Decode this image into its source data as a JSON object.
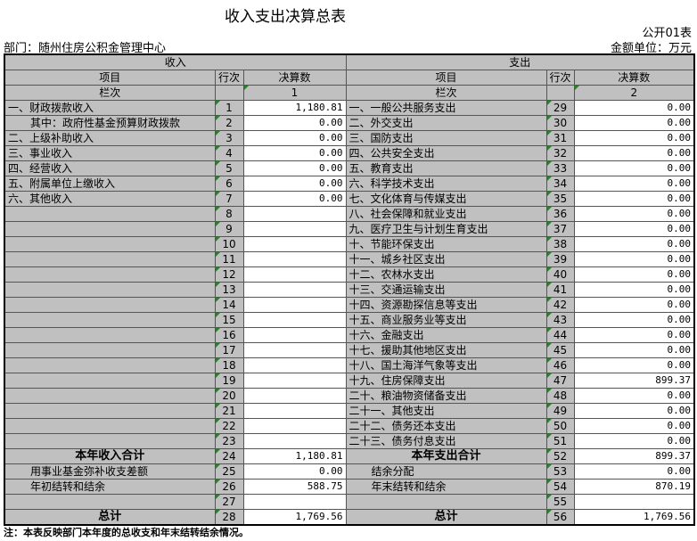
{
  "title": "收入支出决算总表",
  "form_no": "公开01表",
  "department": "部门：随州住房公积金管理中心",
  "unit": "金额单位：万元",
  "headers": {
    "income": "收入",
    "expense": "支出",
    "item": "项目",
    "line_no": "行次",
    "amount": "决算数",
    "column_no": "栏次",
    "income_col": "1",
    "expense_col": "2"
  },
  "rows": [
    {
      "in_label": "一、财政拨款收入",
      "in_no": "1",
      "in_amt": "1,180.81",
      "ex_label": "一、一般公共服务支出",
      "ex_no": "29",
      "ex_amt": "0.00"
    },
    {
      "in_label": "其中：政府性基金预算财政拨款",
      "in_no": "2",
      "in_amt": "0.00",
      "ex_label": "二、外交支出",
      "ex_no": "30",
      "ex_amt": "0.00"
    },
    {
      "in_label": "二、上级补助收入",
      "in_no": "3",
      "in_amt": "0.00",
      "ex_label": "三、国防支出",
      "ex_no": "31",
      "ex_amt": "0.00"
    },
    {
      "in_label": "三、事业收入",
      "in_no": "4",
      "in_amt": "0.00",
      "ex_label": "四、公共安全支出",
      "ex_no": "32",
      "ex_amt": "0.00"
    },
    {
      "in_label": "四、经营收入",
      "in_no": "5",
      "in_amt": "0.00",
      "ex_label": "五、教育支出",
      "ex_no": "33",
      "ex_amt": "0.00"
    },
    {
      "in_label": "五、附属单位上缴收入",
      "in_no": "6",
      "in_amt": "0.00",
      "ex_label": "六、科学技术支出",
      "ex_no": "34",
      "ex_amt": "0.00"
    },
    {
      "in_label": "六、其他收入",
      "in_no": "7",
      "in_amt": "0.00",
      "ex_label": "七、文化体育与传媒支出",
      "ex_no": "35",
      "ex_amt": "0.00"
    },
    {
      "in_label": "",
      "in_no": "8",
      "in_amt": "",
      "ex_label": "八、社会保障和就业支出",
      "ex_no": "36",
      "ex_amt": "0.00"
    },
    {
      "in_label": "",
      "in_no": "9",
      "in_amt": "",
      "ex_label": "九、医疗卫生与计划生育支出",
      "ex_no": "37",
      "ex_amt": "0.00"
    },
    {
      "in_label": "",
      "in_no": "10",
      "in_amt": "",
      "ex_label": "十、节能环保支出",
      "ex_no": "38",
      "ex_amt": "0.00"
    },
    {
      "in_label": "",
      "in_no": "11",
      "in_amt": "",
      "ex_label": "十一、城乡社区支出",
      "ex_no": "39",
      "ex_amt": "0.00"
    },
    {
      "in_label": "",
      "in_no": "12",
      "in_amt": "",
      "ex_label": "十二、农林水支出",
      "ex_no": "40",
      "ex_amt": "0.00"
    },
    {
      "in_label": "",
      "in_no": "13",
      "in_amt": "",
      "ex_label": "十三、交通运输支出",
      "ex_no": "41",
      "ex_amt": "0.00"
    },
    {
      "in_label": "",
      "in_no": "14",
      "in_amt": "",
      "ex_label": "十四、资源勘探信息等支出",
      "ex_no": "42",
      "ex_amt": "0.00"
    },
    {
      "in_label": "",
      "in_no": "15",
      "in_amt": "",
      "ex_label": "十五、商业服务业等支出",
      "ex_no": "43",
      "ex_amt": "0.00"
    },
    {
      "in_label": "",
      "in_no": "16",
      "in_amt": "",
      "ex_label": "十六、金融支出",
      "ex_no": "44",
      "ex_amt": "0.00"
    },
    {
      "in_label": "",
      "in_no": "17",
      "in_amt": "",
      "ex_label": "十七、援助其他地区支出",
      "ex_no": "45",
      "ex_amt": "0.00"
    },
    {
      "in_label": "",
      "in_no": "18",
      "in_amt": "",
      "ex_label": "十八、国土海洋气象等支出",
      "ex_no": "46",
      "ex_amt": "0.00"
    },
    {
      "in_label": "",
      "in_no": "19",
      "in_amt": "",
      "ex_label": "十九、住房保障支出",
      "ex_no": "47",
      "ex_amt": "899.37"
    },
    {
      "in_label": "",
      "in_no": "20",
      "in_amt": "",
      "ex_label": "二十、粮油物资储备支出",
      "ex_no": "48",
      "ex_amt": "0.00"
    },
    {
      "in_label": "",
      "in_no": "21",
      "in_amt": "",
      "ex_label": "二十一、其他支出",
      "ex_no": "49",
      "ex_amt": "0.00"
    },
    {
      "in_label": "",
      "in_no": "22",
      "in_amt": "",
      "ex_label": "二十二、债务还本支出",
      "ex_no": "50",
      "ex_amt": "0.00"
    },
    {
      "in_label": "",
      "in_no": "23",
      "in_amt": "",
      "ex_label": "二十三、债务付息支出",
      "ex_no": "51",
      "ex_amt": "0.00"
    },
    {
      "in_label": "本年收入合计",
      "in_no": "24",
      "in_amt": "1,180.81",
      "ex_label": "本年支出合计",
      "ex_no": "52",
      "ex_amt": "899.37",
      "bold": true
    },
    {
      "in_label": "用事业基金弥补收支差额",
      "in_no": "25",
      "in_amt": "0.00",
      "ex_label": "结余分配",
      "ex_no": "53",
      "ex_amt": "0.00",
      "indent": true
    },
    {
      "in_label": "年初结转和结余",
      "in_no": "26",
      "in_amt": "588.75",
      "ex_label": "年末结转和结余",
      "ex_no": "54",
      "ex_amt": "870.19",
      "indent": true
    },
    {
      "in_label": "",
      "in_no": "27",
      "in_amt": "",
      "ex_label": "",
      "ex_no": "55",
      "ex_amt": ""
    },
    {
      "in_label": "总计",
      "in_no": "28",
      "in_amt": "1,769.56",
      "ex_label": "总计",
      "ex_no": "56",
      "ex_amt": "1,769.56",
      "bold": true
    }
  ],
  "note": "注：本表反映部门本年度的总收支和年末结转结余情况。"
}
